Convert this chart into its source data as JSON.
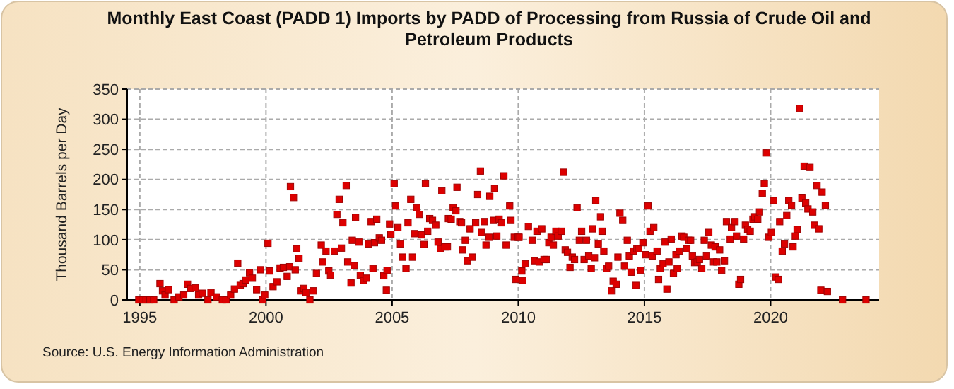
{
  "chart_data": {
    "type": "scatter",
    "title": "Monthly East Coast (PADD 1) Imports by PADD of Processing from Russia of Crude Oil and Petroleum Products",
    "ylabel": "Thousand Barrels per Day",
    "annotations": [
      "Source: U.S. Energy Information Administration"
    ],
    "xlim": [
      1994.5,
      2024.3
    ],
    "xticks": [
      1995,
      2000,
      2005,
      2010,
      2015,
      2020
    ],
    "ylim": [
      0,
      350
    ],
    "yticks": [
      0,
      50,
      100,
      150,
      200,
      250,
      300,
      350
    ],
    "grid": true,
    "marker": "square",
    "series": [
      {
        "color": "#dd0000",
        "x": [
          1994.96,
          1995.1,
          1995.25,
          1995.4,
          1995.55,
          1995.8,
          1995.9,
          1996.0,
          1996.14,
          1996.36,
          1996.55,
          1996.74,
          1996.89,
          1997.02,
          1997.2,
          1997.33,
          1997.48,
          1997.7,
          1997.82,
          1998.04,
          1998.27,
          1998.42,
          1998.6,
          1998.75,
          1998.88,
          1998.98,
          1999.09,
          1999.2,
          1999.35,
          1999.46,
          1999.63,
          1999.78,
          1999.87,
          1999.95,
          2000.08,
          2000.15,
          2000.28,
          2000.43,
          2000.56,
          2000.69,
          2000.84,
          2000.94,
          2000.97,
          2001.09,
          2001.16,
          2001.22,
          2001.31,
          2001.37,
          2001.5,
          2001.59,
          2001.74,
          2001.87,
          2002.0,
          2002.19,
          2002.25,
          2002.38,
          2002.49,
          2002.56,
          2002.71,
          2002.81,
          2002.9,
          2002.99,
          2003.05,
          2003.18,
          2003.24,
          2003.37,
          2003.42,
          2003.5,
          2003.55,
          2003.68,
          2003.74,
          2003.87,
          2003.98,
          2004.06,
          2004.17,
          2004.24,
          2004.3,
          2004.39,
          2004.49,
          2004.58,
          2004.67,
          2004.77,
          2004.8,
          2004.9,
          2004.95,
          2005.08,
          2005.14,
          2005.23,
          2005.33,
          2005.42,
          2005.55,
          2005.63,
          2005.74,
          2005.81,
          2005.89,
          2005.98,
          2006.07,
          2006.17,
          2006.26,
          2006.32,
          2006.41,
          2006.49,
          2006.6,
          2006.73,
          2006.82,
          2006.91,
          2006.97,
          2007.1,
          2007.19,
          2007.23,
          2007.34,
          2007.42,
          2007.53,
          2007.57,
          2007.68,
          2007.75,
          2007.79,
          2007.9,
          2007.98,
          2008.09,
          2008.17,
          2008.31,
          2008.39,
          2008.5,
          2008.54,
          2008.65,
          2008.72,
          2008.84,
          2008.87,
          2009.02,
          2009.06,
          2009.15,
          2009.24,
          2009.34,
          2009.43,
          2009.52,
          2009.66,
          2009.71,
          2009.84,
          2009.9,
          2009.99,
          2010.03,
          2010.14,
          2010.18,
          2010.27,
          2010.4,
          2010.55,
          2010.65,
          2010.74,
          2010.83,
          2010.93,
          2011.02,
          2011.11,
          2011.21,
          2011.3,
          2011.39,
          2011.49,
          2011.58,
          2011.71,
          2011.79,
          2011.86,
          2011.95,
          2012.05,
          2012.14,
          2012.23,
          2012.33,
          2012.42,
          2012.51,
          2012.61,
          2012.7,
          2012.79,
          2012.89,
          2012.94,
          2013.02,
          2013.07,
          2013.17,
          2013.26,
          2013.32,
          2013.39,
          2013.5,
          2013.58,
          2013.69,
          2013.76,
          2013.88,
          2013.95,
          2014.03,
          2014.14,
          2014.21,
          2014.32,
          2014.4,
          2014.47,
          2014.57,
          2014.66,
          2014.7,
          2014.77,
          2014.85,
          2014.94,
          2015.04,
          2015.14,
          2015.22,
          2015.31,
          2015.37,
          2015.5,
          2015.56,
          2015.63,
          2015.74,
          2015.82,
          2015.89,
          2015.97,
          2016.06,
          2016.15,
          2016.25,
          2016.3,
          2016.38,
          2016.49,
          2016.56,
          2016.68,
          2016.75,
          2016.83,
          2016.9,
          2016.99,
          2017.09,
          2017.18,
          2017.27,
          2017.37,
          2017.46,
          2017.55,
          2017.65,
          2017.74,
          2017.8,
          2017.87,
          2017.98,
          2018.06,
          2018.17,
          2018.25,
          2018.4,
          2018.45,
          2018.59,
          2018.65,
          2018.74,
          2018.81,
          2018.93,
          2019.0,
          2019.09,
          2019.19,
          2019.3,
          2019.37,
          2019.49,
          2019.56,
          2019.67,
          2019.75,
          2019.84,
          2019.93,
          2020.03,
          2020.12,
          2020.21,
          2020.31,
          2020.36,
          2020.46,
          2020.55,
          2020.64,
          2020.72,
          2020.83,
          2020.89,
          2020.98,
          2021.05,
          2021.15,
          2021.24,
          2021.33,
          2021.39,
          2021.48,
          2021.56,
          2021.67,
          2021.73,
          2021.84,
          2021.91,
          2021.99,
          2022.04,
          2022.17,
          2022.25,
          2022.85,
          2023.78
        ],
        "values": [
          0,
          0,
          0,
          0,
          0,
          27,
          15,
          8,
          17,
          0,
          5,
          8,
          26,
          19,
          20,
          8,
          11,
          0,
          12,
          5,
          0,
          0,
          8,
          18,
          61,
          24,
          27,
          33,
          45,
          36,
          17,
          50,
          0,
          8,
          94,
          48,
          22,
          30,
          53,
          54,
          39,
          55,
          188,
          170,
          50,
          85,
          69,
          15,
          19,
          12,
          0,
          15,
          44,
          91,
          63,
          81,
          48,
          41,
          81,
          142,
          167,
          86,
          128,
          190,
          63,
          28,
          99,
          57,
          137,
          96,
          41,
          32,
          36,
          93,
          130,
          52,
          95,
          134,
          103,
          99,
          40,
          16,
          49,
          126,
          109,
          193,
          156,
          120,
          93,
          71,
          52,
          128,
          167,
          71,
          110,
          153,
          142,
          108,
          92,
          193,
          114,
          135,
          132,
          124,
          96,
          85,
          181,
          88,
          88,
          135,
          134,
          153,
          148,
          187,
          130,
          128,
          83,
          99,
          65,
          118,
          71,
          128,
          175,
          214,
          112,
          130,
          91,
          104,
          172,
          132,
          185,
          106,
          134,
          128,
          206,
          91,
          156,
          132,
          104,
          34,
          104,
          104,
          48,
          32,
          60,
          122,
          99,
          65,
          114,
          63,
          118,
          67,
          67,
          95,
          104,
          91,
          114,
          106,
          114,
          212,
          83,
          79,
          54,
          71,
          67,
          153,
          99,
          114,
          67,
          99,
          73,
          52,
          118,
          70,
          165,
          93,
          138,
          114,
          81,
          52,
          56,
          15,
          31,
          26,
          71,
          144,
          132,
          56,
          99,
          73,
          46,
          81,
          24,
          85,
          85,
          49,
          95,
          75,
          156,
          114,
          73,
          120,
          81,
          34,
          52,
          60,
          96,
          18,
          63,
          101,
          44,
          75,
          52,
          81,
          106,
          104,
          85,
          99,
          99,
          73,
          62,
          63,
          67,
          52,
          99,
          73,
          112,
          91,
          63,
          88,
          63,
          83,
          49,
          65,
          130,
          101,
          120,
          130,
          106,
          26,
          34,
          101,
          124,
          117,
          114,
          134,
          138,
          134,
          146,
          177,
          193,
          244,
          104,
          112,
          165,
          38,
          34,
          130,
          81,
          93,
          140,
          165,
          157,
          88,
          106,
          117,
          318,
          169,
          222,
          161,
          151,
          220,
          146,
          124,
          190,
          118,
          16,
          179,
          157,
          14,
          0,
          0
        ]
      }
    ]
  }
}
